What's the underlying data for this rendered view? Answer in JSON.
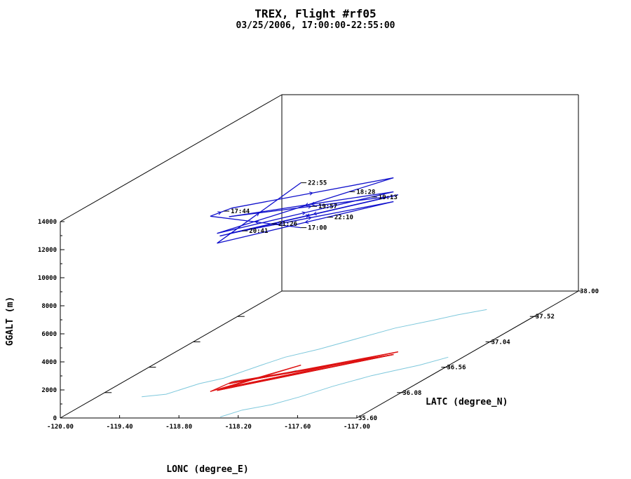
{
  "chart_data": {
    "type": "line",
    "projection": "3d",
    "title": "TREX, Flight #rf05",
    "subtitle": "03/25/2006, 17:00:00-22:55:00",
    "xlabel": "LONC (degree_E)",
    "ylabel": "LATC (degree_N)",
    "zlabel": "GGALT (m)",
    "xlim": [
      -120.0,
      -117.0
    ],
    "ylim": [
      35.6,
      38.0
    ],
    "zlim": [
      0,
      14000
    ],
    "x_ticks": [
      "-120.00",
      "-119.40",
      "-118.80",
      "-118.20",
      "-117.60",
      "-117.00"
    ],
    "y_ticks": [
      "35.60",
      "36.08",
      "36.56",
      "37.04",
      "37.52",
      "38.00"
    ],
    "z_ticks": [
      "0",
      "2000",
      "4000",
      "6000",
      "8000",
      "10000",
      "12000",
      "14000"
    ],
    "colors": {
      "flight_track": "#1010cc",
      "ground_track": "#dd1111",
      "terrain_outline": "#7ec8dc",
      "axes": "#000000"
    },
    "time_labels": [
      "17:00",
      "17:44",
      "18:28",
      "19:13",
      "19:57",
      "20:41",
      "21:26",
      "22:10",
      "22:55"
    ],
    "series": [
      {
        "name": "flight_track",
        "points": [
          [
            -118.5,
            36.6,
            9800
          ],
          [
            -118.95,
            36.1,
            12500
          ],
          [
            -118.9,
            36.28,
            12400
          ],
          [
            -117.75,
            36.8,
            12600
          ],
          [
            -118.9,
            36.12,
            11200
          ],
          [
            -117.75,
            36.8,
            11600
          ],
          [
            -118.9,
            36.25,
            11900
          ],
          [
            -117.75,
            36.8,
            11300
          ],
          [
            -118.9,
            36.15,
            10900
          ],
          [
            -117.75,
            36.85,
            11200
          ],
          [
            -118.9,
            36.25,
            10700
          ],
          [
            -117.75,
            36.8,
            10900
          ],
          [
            -118.9,
            36.12,
            10500
          ],
          [
            -118.5,
            36.6,
            13000
          ]
        ]
      }
    ]
  }
}
